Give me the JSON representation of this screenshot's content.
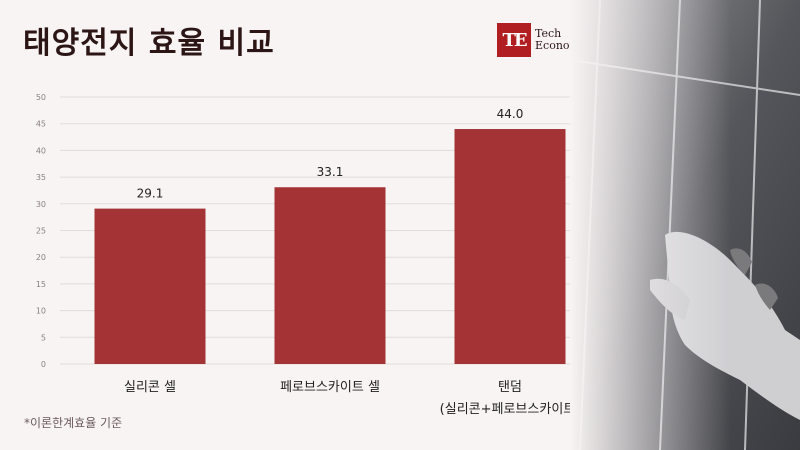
{
  "header": {
    "title": "태양전지 효율 비교",
    "brand_line1": "Tech",
    "brand_line2": "Economy",
    "brand_mark": "TE"
  },
  "footnote": "*이론한계효율 기준",
  "colors": {
    "bar": "#a33334",
    "title": "#2b1515",
    "background": "#f8f4f4",
    "brand": "#b01e22"
  },
  "chart_data": {
    "type": "bar",
    "title": "태양전지 효율 비교",
    "categories": [
      "실리콘 셀",
      "페로브스카이트 셀",
      "탠덤\n(실리콘+페로브스카이트)"
    ],
    "values": [
      29.1,
      33.1,
      44.0
    ],
    "value_labels": [
      "29.1",
      "33.1",
      "44.0"
    ],
    "ylim": [
      0,
      50
    ],
    "yticks": [
      0,
      5,
      10,
      15,
      20,
      25,
      30,
      35,
      40,
      45,
      50
    ],
    "xlabel": "",
    "ylabel": "",
    "grid": true,
    "legend": "none"
  }
}
